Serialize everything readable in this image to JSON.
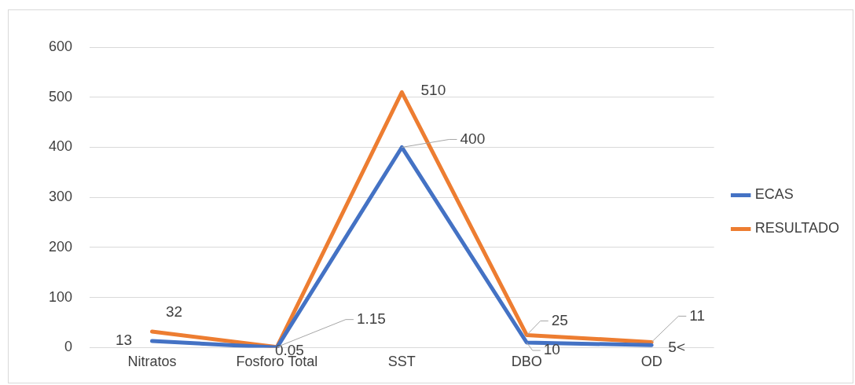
{
  "chart_data": {
    "type": "line",
    "categories": [
      "Nitratos",
      "Fosforo Total",
      "SST",
      "DBO",
      "OD"
    ],
    "series": [
      {
        "name": "ECAS",
        "color": "#4472c4",
        "values": [
          13,
          0.05,
          400,
          10,
          5
        ],
        "value_labels": [
          "13",
          "0.05",
          "400",
          "10",
          "5<"
        ]
      },
      {
        "name": "RESULTADO",
        "color": "#ed7d31",
        "values": [
          32,
          1.15,
          510,
          25,
          11
        ],
        "value_labels": [
          "32",
          "1.15",
          "510",
          "25",
          "11"
        ]
      }
    ],
    "ylim": [
      0,
      600
    ],
    "yticks": [
      0,
      100,
      200,
      300,
      400,
      500,
      600
    ],
    "grid": "y",
    "legend": "right",
    "marker": "none",
    "line_style": "solid"
  }
}
